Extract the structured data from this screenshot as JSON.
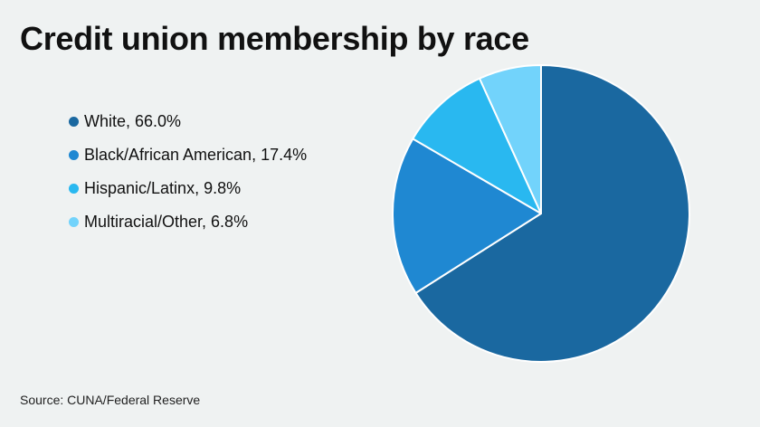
{
  "title": "Credit union membership by race",
  "source": "Source: CUNA/Federal Reserve",
  "chart_data": {
    "type": "pie",
    "title": "Credit union membership by race",
    "categories": [
      "White",
      "Black/African American",
      "Hispanic/Latinx",
      "Multiracial/Other"
    ],
    "values": [
      66.0,
      17.4,
      9.8,
      6.8
    ],
    "unit": "%",
    "legend_labels": [
      "White, 66.0%",
      "Black/African American, 17.4%",
      "Hispanic/Latinx, 9.8%",
      "Multiracial/Other, 6.8%"
    ],
    "colors": [
      "#1a68a0",
      "#1f88d2",
      "#29b8f0",
      "#72d3fb"
    ],
    "slice_border_color": "#ffffff",
    "start_angle": "12 o'clock",
    "direction": "clockwise",
    "legend_position": "left"
  }
}
